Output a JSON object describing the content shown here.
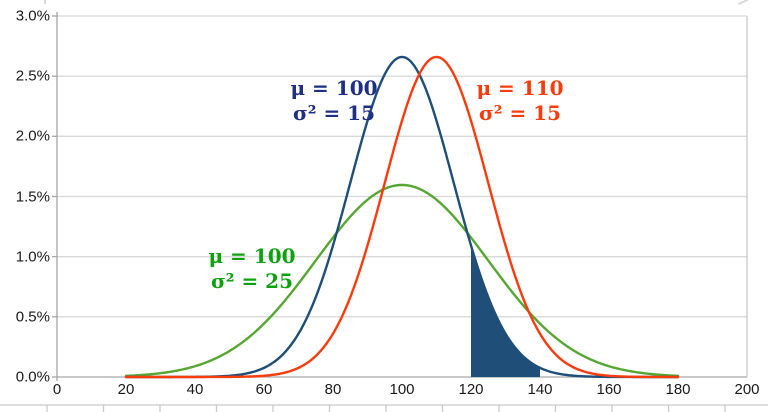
{
  "chart_data": {
    "type": "line",
    "title": "",
    "xlabel": "",
    "ylabel": "",
    "xlim": [
      0,
      200
    ],
    "ylim_percent": [
      0,
      3
    ],
    "x_tick_values": [
      0,
      20,
      40,
      60,
      80,
      100,
      120,
      140,
      160,
      180,
      200
    ],
    "x_tick_labels": [
      "0",
      "20",
      "40",
      "60",
      "80",
      "100",
      "120",
      "140",
      "160",
      "180",
      "200"
    ],
    "y_tick_values": [
      0,
      0.5,
      1,
      1.5,
      2,
      2.5,
      3
    ],
    "y_tick_labels": [
      "0.0%",
      "0.5%",
      "1.0%",
      "1.5%",
      "2.0%",
      "2.5%",
      "3.0%"
    ],
    "grid": "horizontal",
    "legend_position": "none",
    "curve_domain": [
      20,
      180
    ],
    "series": [
      {
        "name": "normal-mu100-var15",
        "label_line1": "μ = 100",
        "label_line2": "σ² = 15",
        "mu": 100,
        "sigma": 15,
        "peak_percent": 2.66,
        "color": "#1f4e79",
        "label_color": "#1f2f85"
      },
      {
        "name": "normal-mu110-var15",
        "label_line1": "μ = 110",
        "label_line2": "σ² = 15",
        "mu": 110,
        "sigma": 15,
        "peak_percent": 2.66,
        "color": "#f83c0d",
        "label_color": "#f83c0d"
      },
      {
        "name": "normal-mu100-var25",
        "label_line1": "μ = 100",
        "label_line2": "σ² = 25",
        "mu": 100,
        "sigma": 25,
        "peak_percent": 1.6,
        "color": "#56a632",
        "label_color": "#0ea10e"
      }
    ],
    "shaded_region": {
      "series": "normal-mu100-var15",
      "from_x": 120,
      "to_x": 140,
      "fill": "#1f4e79"
    },
    "colors": {
      "gridline": "#d9d9d9",
      "axis": "#a6a6a6",
      "plot_border_right": "#c9c9c9",
      "bottom_strip_line": "#c9c9c9"
    }
  },
  "layout_note_bottom_strip": "cropped sliver of adjacent chart axis with tick marks"
}
